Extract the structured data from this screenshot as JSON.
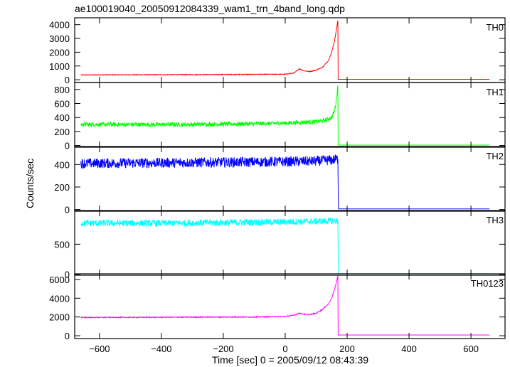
{
  "chart_data": {
    "type": "line",
    "title": "ae100019040_20050912084339_wam1_trn_4band_long.qdp",
    "xlabel": "Time [sec] 0 = 2005/09/12 08:43:39",
    "ylabel": "Counts/sec",
    "xlim": [
      -680,
      710
    ],
    "x_ticks": [
      -600,
      -400,
      -200,
      0,
      200,
      400,
      600
    ],
    "x_tick_labels": [
      "−600",
      "−400",
      "−200",
      "0",
      "200",
      "400",
      "600"
    ],
    "panels": [
      {
        "name": "TH0",
        "color": "#ff0000",
        "ylim": [
          -200,
          4500
        ],
        "y_ticks": [
          0,
          1000,
          2000,
          3000,
          4000
        ],
        "y_tick_labels": [
          "0",
          "1000",
          "2000",
          "3000",
          "4000"
        ],
        "x": [
          -660,
          -600,
          -500,
          -400,
          -300,
          -200,
          -100,
          0,
          30,
          45,
          60,
          80,
          100,
          120,
          140,
          150,
          160,
          165,
          170,
          171,
          175,
          660
        ],
        "y": [
          350,
          355,
          360,
          365,
          370,
          380,
          390,
          400,
          500,
          800,
          650,
          600,
          700,
          900,
          1400,
          2000,
          2900,
          3600,
          4300,
          30,
          30,
          30
        ],
        "noise": 25
      },
      {
        "name": "TH1",
        "color": "#00ff00",
        "ylim": [
          -25,
          900
        ],
        "y_ticks": [
          0,
          200,
          400,
          600,
          800
        ],
        "y_tick_labels": [
          "0",
          "200",
          "400",
          "600",
          "800"
        ],
        "x": [
          -660,
          -500,
          -300,
          -100,
          0,
          50,
          100,
          130,
          150,
          160,
          165,
          170,
          171,
          175,
          660
        ],
        "y": [
          300,
          300,
          300,
          310,
          320,
          330,
          340,
          360,
          400,
          500,
          650,
          860,
          5,
          5,
          5
        ],
        "noise": 30
      },
      {
        "name": "TH2",
        "color": "#0000ff",
        "ylim": [
          -15,
          560
        ],
        "y_ticks": [
          0,
          200,
          400
        ],
        "y_tick_labels": [
          "0",
          "200",
          "400"
        ],
        "x": [
          -660,
          -400,
          -200,
          0,
          100,
          150,
          170,
          171,
          172,
          175,
          660
        ],
        "y": [
          410,
          415,
          420,
          425,
          430,
          440,
          450,
          220,
          5,
          5,
          5
        ],
        "noise": 45
      },
      {
        "name": "TH3",
        "color": "#00ffff",
        "ylim": [
          -15,
          1060
        ],
        "y_ticks": [
          0,
          500
        ],
        "y_tick_labels": [
          "0",
          "500"
        ],
        "x": [
          -660,
          -400,
          -200,
          0,
          100,
          170,
          171,
          172,
          175,
          660
        ],
        "y": [
          850,
          850,
          860,
          870,
          880,
          890,
          450,
          10,
          10,
          10
        ],
        "noise": 55
      },
      {
        "name": "TH0123",
        "color": "#ff00ff",
        "ylim": [
          -300,
          6600
        ],
        "y_ticks": [
          0,
          2000,
          4000,
          6000
        ],
        "y_tick_labels": [
          "0",
          "2000",
          "4000",
          "6000"
        ],
        "x": [
          -660,
          -500,
          -300,
          -100,
          0,
          30,
          45,
          60,
          80,
          100,
          120,
          140,
          150,
          160,
          170,
          171,
          175,
          660
        ],
        "y": [
          1950,
          1960,
          1980,
          2000,
          2050,
          2200,
          2400,
          2300,
          2250,
          2400,
          2800,
          3400,
          4000,
          5000,
          6400,
          80,
          80,
          80
        ],
        "noise": 50
      }
    ]
  }
}
